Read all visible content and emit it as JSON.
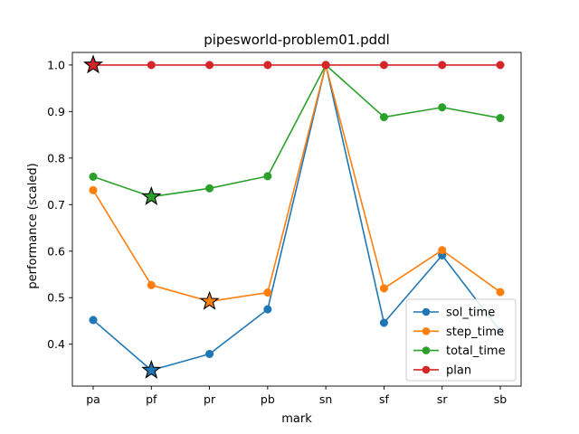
{
  "chart_data": {
    "type": "line",
    "title": "pipesworld-problem01.pddl",
    "xlabel": "mark",
    "ylabel": "performance (scaled)",
    "categories": [
      "pa",
      "pf",
      "pr",
      "pb",
      "sn",
      "sf",
      "sr",
      "sb"
    ],
    "ylim": [
      0.31,
      1.027
    ],
    "yticks": [
      "0.4",
      "0.5",
      "0.6",
      "0.7",
      "0.8",
      "0.9",
      "1.0"
    ],
    "legend_position": "lower-right",
    "series": [
      {
        "name": "sol_time",
        "color": "#1f77b4",
        "values": [
          0.452,
          0.344,
          0.379,
          0.475,
          1.0,
          0.446,
          0.591,
          0.428
        ],
        "best_index": 1
      },
      {
        "name": "step_time",
        "color": "#ff7f0e",
        "values": [
          0.731,
          0.527,
          0.492,
          0.511,
          1.0,
          0.52,
          0.602,
          0.512
        ],
        "best_index": 2
      },
      {
        "name": "total_time",
        "color": "#2ca02c",
        "values": [
          0.76,
          0.717,
          0.735,
          0.761,
          1.0,
          0.888,
          0.909,
          0.886
        ],
        "best_index": 1
      },
      {
        "name": "plan",
        "color": "#d62728",
        "values": [
          1.0,
          1.0,
          1.0,
          1.0,
          1.0,
          1.0,
          1.0,
          1.0
        ],
        "best_index": 0
      }
    ]
  }
}
